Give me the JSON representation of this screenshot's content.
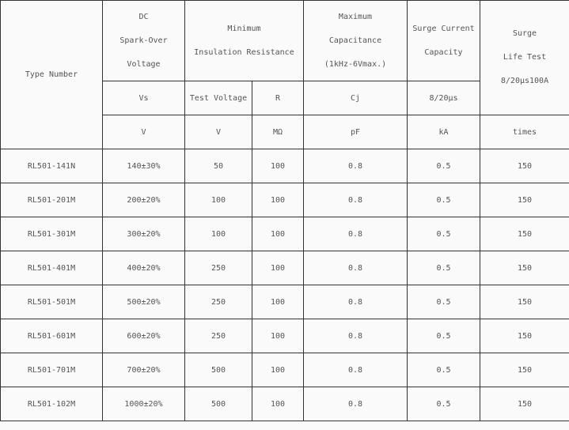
{
  "header": {
    "type_number": "Type Number",
    "dc_spark_over": [
      "DC",
      "Spark-Over",
      "Voltage"
    ],
    "min_insulation": [
      "Minimum",
      "Insulation Resistance"
    ],
    "max_capacitance": [
      "Maximum",
      "Capacitance",
      "(1kHz-6Vmax.)"
    ],
    "surge_current": [
      "Surge Current",
      "Capacity"
    ],
    "surge_life": [
      "Surge",
      "Life Test",
      "8/20μs100A"
    ],
    "symbols": {
      "vs": "Vs",
      "test_voltage": "Test Voltage",
      "r": "R",
      "cj": "Cj",
      "surge": "8/20μs"
    },
    "units": {
      "vs": "V",
      "test_voltage": "V",
      "r": "MΩ",
      "cj": "pF",
      "surge": "kA",
      "life": "times"
    }
  },
  "rows": [
    [
      "RL501-141N",
      "140±30%",
      "50",
      "100",
      "0.8",
      "0.5",
      "150"
    ],
    [
      "RL501-201M",
      "200±20%",
      "100",
      "100",
      "0.8",
      "0.5",
      "150"
    ],
    [
      "RL501-301M",
      "300±20%",
      "100",
      "100",
      "0.8",
      "0.5",
      "150"
    ],
    [
      "RL501-401M",
      "400±20%",
      "250",
      "100",
      "0.8",
      "0.5",
      "150"
    ],
    [
      "RL501-501M",
      "500±20%",
      "250",
      "100",
      "0.8",
      "0.5",
      "150"
    ],
    [
      "RL501-601M",
      "600±20%",
      "250",
      "100",
      "0.8",
      "0.5",
      "150"
    ],
    [
      "RL501-701M",
      "700±20%",
      "500",
      "100",
      "0.8",
      "0.5",
      "150"
    ],
    [
      "RL501-102M",
      "1000±20%",
      "500",
      "100",
      "0.8",
      "0.5",
      "150"
    ]
  ]
}
